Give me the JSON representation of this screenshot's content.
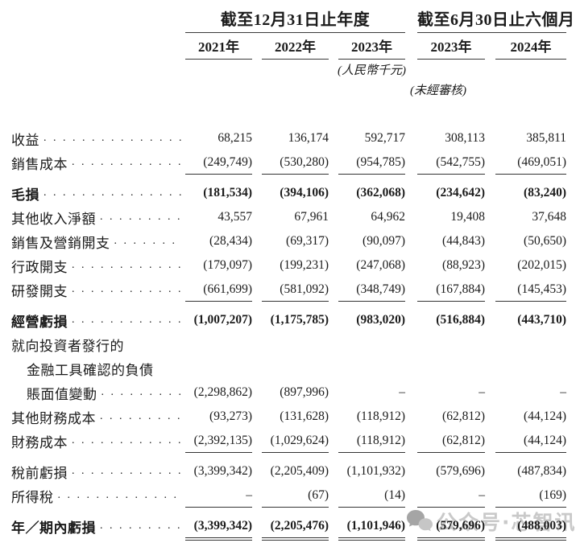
{
  "styles": {
    "text_color": "#1b1b1b",
    "rule_color": "#333333",
    "watermark_color": "#c9c9c9"
  },
  "header": {
    "groups": [
      {
        "label": "截至12月31日止年度"
      },
      {
        "label": "截至6月30日止六個月"
      }
    ],
    "columns": [
      "2021年",
      "2022年",
      "2023年",
      "2023年",
      "2024年"
    ],
    "unit_note": "(人民幣千元)",
    "audit_note": "(未經審核)"
  },
  "rows": [
    {
      "label": "收益",
      "values": [
        "68,215",
        "136,174",
        "592,717",
        "308,113",
        "385,811"
      ]
    },
    {
      "label": "銷售成本",
      "underline": "single",
      "values": [
        "(249,749)",
        "(530,280)",
        "(954,785)",
        "(542,755)",
        "(469,051)"
      ]
    },
    {
      "label": "毛損",
      "bold": true,
      "gap_before": true,
      "values": [
        "(181,534)",
        "(394,106)",
        "(362,068)",
        "(234,642)",
        "(83,240)"
      ]
    },
    {
      "label": "其他收入淨額",
      "values": [
        "43,557",
        "67,961",
        "64,962",
        "19,408",
        "37,648"
      ]
    },
    {
      "label": "銷售及營銷開支",
      "values": [
        "(28,434)",
        "(69,317)",
        "(90,097)",
        "(44,843)",
        "(50,650)"
      ]
    },
    {
      "label": "行政開支",
      "values": [
        "(179,097)",
        "(199,231)",
        "(247,068)",
        "(88,923)",
        "(202,015)"
      ]
    },
    {
      "label": "研發開支",
      "underline": "single",
      "values": [
        "(661,699)",
        "(581,092)",
        "(348,749)",
        "(167,884)",
        "(145,453)"
      ]
    },
    {
      "label": "經營虧損",
      "bold": true,
      "gap_before": true,
      "values": [
        "(1,007,207)",
        "(1,175,785)",
        "(983,020)",
        "(516,884)",
        "(443,710)"
      ]
    },
    {
      "label": "就向投資者發行的",
      "values": null
    },
    {
      "label": "金融工具確認的負債",
      "indent": true,
      "values": null
    },
    {
      "label": "賬面值變動",
      "indent": true,
      "values": [
        "(2,298,862)",
        "(897,996)",
        "–",
        "–",
        "–"
      ]
    },
    {
      "label": "其他財務成本",
      "values": [
        "(93,273)",
        "(131,628)",
        "(118,912)",
        "(62,812)",
        "(44,124)"
      ]
    },
    {
      "label": "財務成本",
      "underline": "single",
      "values": [
        "(2,392,135)",
        "(1,029,624)",
        "(118,912)",
        "(62,812)",
        "(44,124)"
      ]
    },
    {
      "label": "稅前虧損",
      "gap_before": true,
      "values": [
        "(3,399,342)",
        "(2,205,409)",
        "(1,101,932)",
        "(579,696)",
        "(487,834)"
      ]
    },
    {
      "label": "所得稅",
      "underline": "single",
      "values": [
        "–",
        "(67)",
        "(14)",
        "–",
        "(169)"
      ]
    },
    {
      "label": "年／期內虧損",
      "bold": true,
      "gap_before": true,
      "underline": "double",
      "values": [
        "(3,399,342)",
        "(2,205,476)",
        "(1,101,946)",
        "(579,696)",
        "(488,003)"
      ]
    }
  ],
  "watermark": {
    "icon": "chat-bubbles-icon",
    "text": "公众号·芯智讯"
  }
}
